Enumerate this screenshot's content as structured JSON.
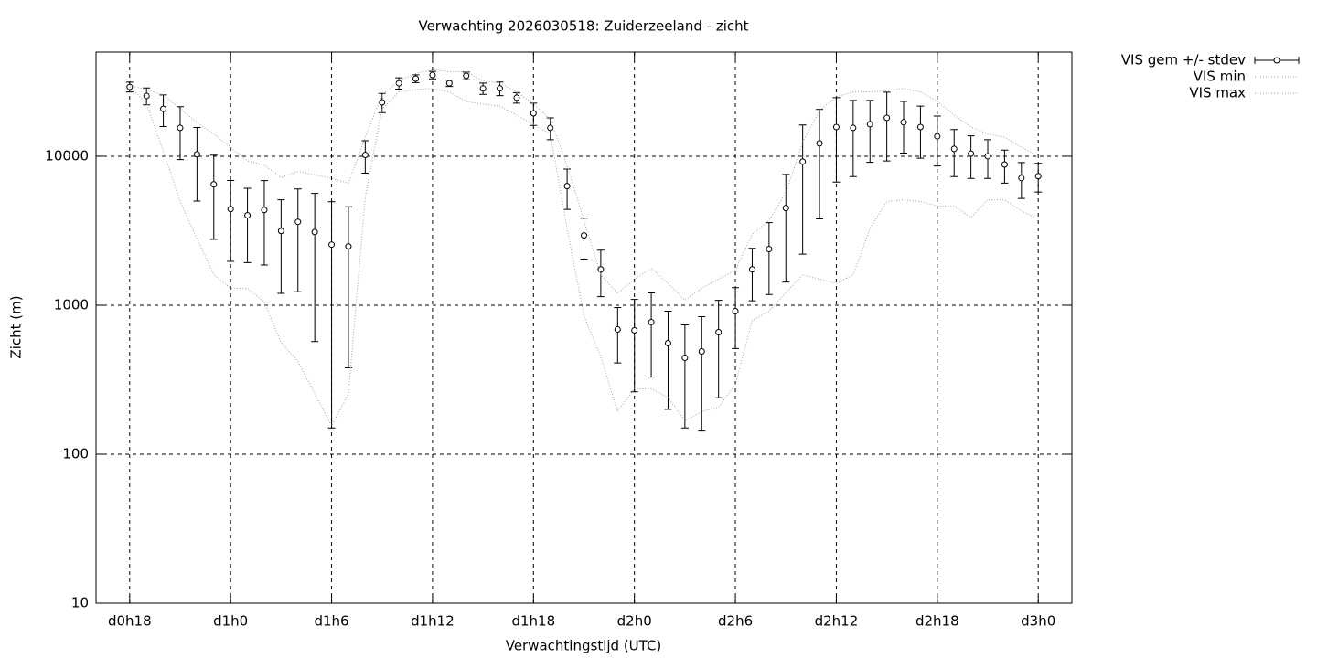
{
  "chart_data": {
    "type": "errorbar",
    "title": "Verwachting 2026030518: Zuiderzeeland - zicht",
    "xlabel": "Verwachtingstijd (UTC)",
    "ylabel": "Zicht (m)",
    "xlim": [
      16,
      74
    ],
    "ylim": [
      10,
      50000
    ],
    "log_y": true,
    "grid": true,
    "legend": "outside-right",
    "xticks": [
      {
        "value": 18,
        "label": "d0h18"
      },
      {
        "value": 24,
        "label": "d1h0"
      },
      {
        "value": 30,
        "label": "d1h6"
      },
      {
        "value": 36,
        "label": "d1h12"
      },
      {
        "value": 42,
        "label": "d1h18"
      },
      {
        "value": 48,
        "label": "d2h0"
      },
      {
        "value": 54,
        "label": "d2h6"
      },
      {
        "value": 60,
        "label": "d2h12"
      },
      {
        "value": 66,
        "label": "d2h18"
      },
      {
        "value": 72,
        "label": "d3h0"
      }
    ],
    "yticks": [
      10,
      100,
      1000,
      10000
    ],
    "x": [
      18,
      19,
      20,
      21,
      22,
      23,
      24,
      25,
      26,
      27,
      28,
      29,
      30,
      31,
      32,
      33,
      34,
      35,
      36,
      37,
      38,
      39,
      40,
      41,
      42,
      43,
      44,
      45,
      46,
      47,
      48,
      49,
      50,
      51,
      52,
      53,
      54,
      55,
      56,
      57,
      58,
      59,
      60,
      61,
      62,
      63,
      64,
      65,
      66,
      67,
      68,
      69,
      70,
      71,
      72
    ],
    "series": [
      {
        "name": "VIS gem +/- stdev",
        "color": "#000000",
        "values": [
          29200,
          25400,
          20800,
          15500,
          10300,
          6470,
          4420,
          4010,
          4360,
          3150,
          3630,
          3100,
          2550,
          2480,
          10200,
          23000,
          30900,
          33200,
          35100,
          30900,
          34700,
          28500,
          28500,
          24700,
          19400,
          15500,
          6300,
          2940,
          1740,
          687,
          678,
          769,
          556,
          444,
          490,
          659,
          912,
          1740,
          2380,
          4490,
          9200,
          12200,
          15700,
          15500,
          16400,
          18100,
          16900,
          15700,
          13600,
          11200,
          10400,
          10000,
          8800,
          7140,
          7350
        ],
        "errors": [
          2200,
          3300,
          5000,
          6000,
          5300,
          3700,
          2450,
          2080,
          2500,
          1950,
          2400,
          2530,
          2400,
          2100,
          2500,
          3400,
          2700,
          2000,
          2000,
          1500,
          2000,
          2500,
          3000,
          2000,
          3300,
          2600,
          1900,
          900,
          600,
          277,
          416,
          440,
          356,
          294,
          347,
          420,
          400,
          670,
          1200,
          3060,
          7000,
          8400,
          9000,
          8200,
          7300,
          8800,
          6400,
          6000,
          5000,
          3900,
          3300,
          2900,
          2200,
          1930,
          1600
        ]
      },
      {
        "name": "VIS min",
        "color": "#a0a0a0",
        "values": [
          29200,
          22700,
          10800,
          4970,
          2800,
          1600,
          1300,
          1300,
          1050,
          560,
          420,
          255,
          155,
          255,
          5300,
          20800,
          27000,
          28000,
          28500,
          27000,
          23300,
          22400,
          21700,
          18900,
          16300,
          14100,
          3270,
          850,
          450,
          193,
          275,
          275,
          240,
          168,
          193,
          207,
          295,
          790,
          910,
          1210,
          1600,
          1500,
          1400,
          1600,
          3270,
          4970,
          5100,
          4970,
          4640,
          4640,
          3880,
          5100,
          5100,
          4300,
          3800
        ]
      },
      {
        "name": "VIS max",
        "color": "#a0a0a0",
        "values": [
          30000,
          28000,
          25800,
          20800,
          16800,
          14100,
          11500,
          9300,
          8700,
          7200,
          7900,
          7500,
          7100,
          6600,
          13400,
          25800,
          32000,
          36000,
          38000,
          37000,
          37000,
          32000,
          31000,
          27000,
          22400,
          17600,
          8700,
          3700,
          1600,
          1200,
          1500,
          1770,
          1400,
          1080,
          1300,
          1500,
          1720,
          3000,
          3700,
          5700,
          12400,
          20300,
          25000,
          27000,
          27000,
          27600,
          28500,
          27000,
          23300,
          18900,
          15700,
          14100,
          13400,
          11500,
          10000
        ]
      }
    ]
  }
}
